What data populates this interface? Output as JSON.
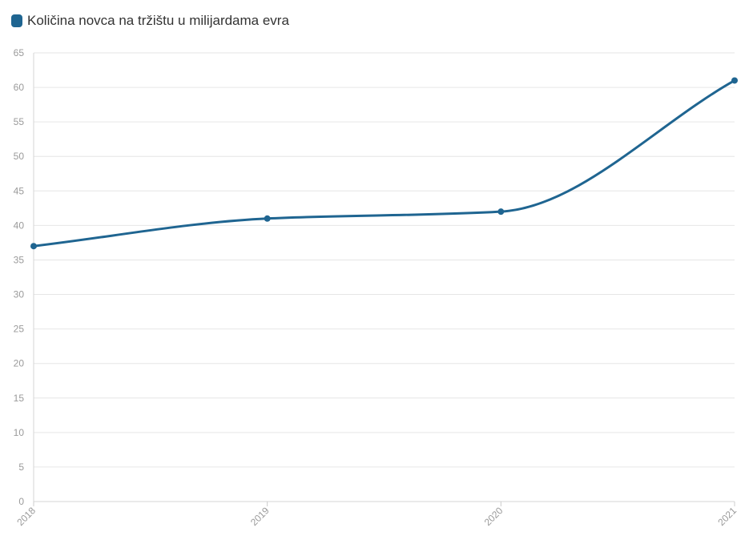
{
  "chart_data": {
    "type": "line",
    "categories": [
      "2018",
      "2019",
      "2020",
      "2021"
    ],
    "series": [
      {
        "name": "Količina novca na tržištu u milijardama evra",
        "values": [
          37,
          41,
          42,
          61
        ],
        "color": "#1f6591"
      }
    ],
    "ylim": [
      0,
      65
    ],
    "yticks": [
      0,
      5,
      10,
      15,
      20,
      25,
      30,
      35,
      40,
      45,
      50,
      55,
      60,
      65
    ],
    "grid": true,
    "legend_position": "top-left",
    "smooth": true,
    "xlabel": "",
    "ylabel": ""
  }
}
